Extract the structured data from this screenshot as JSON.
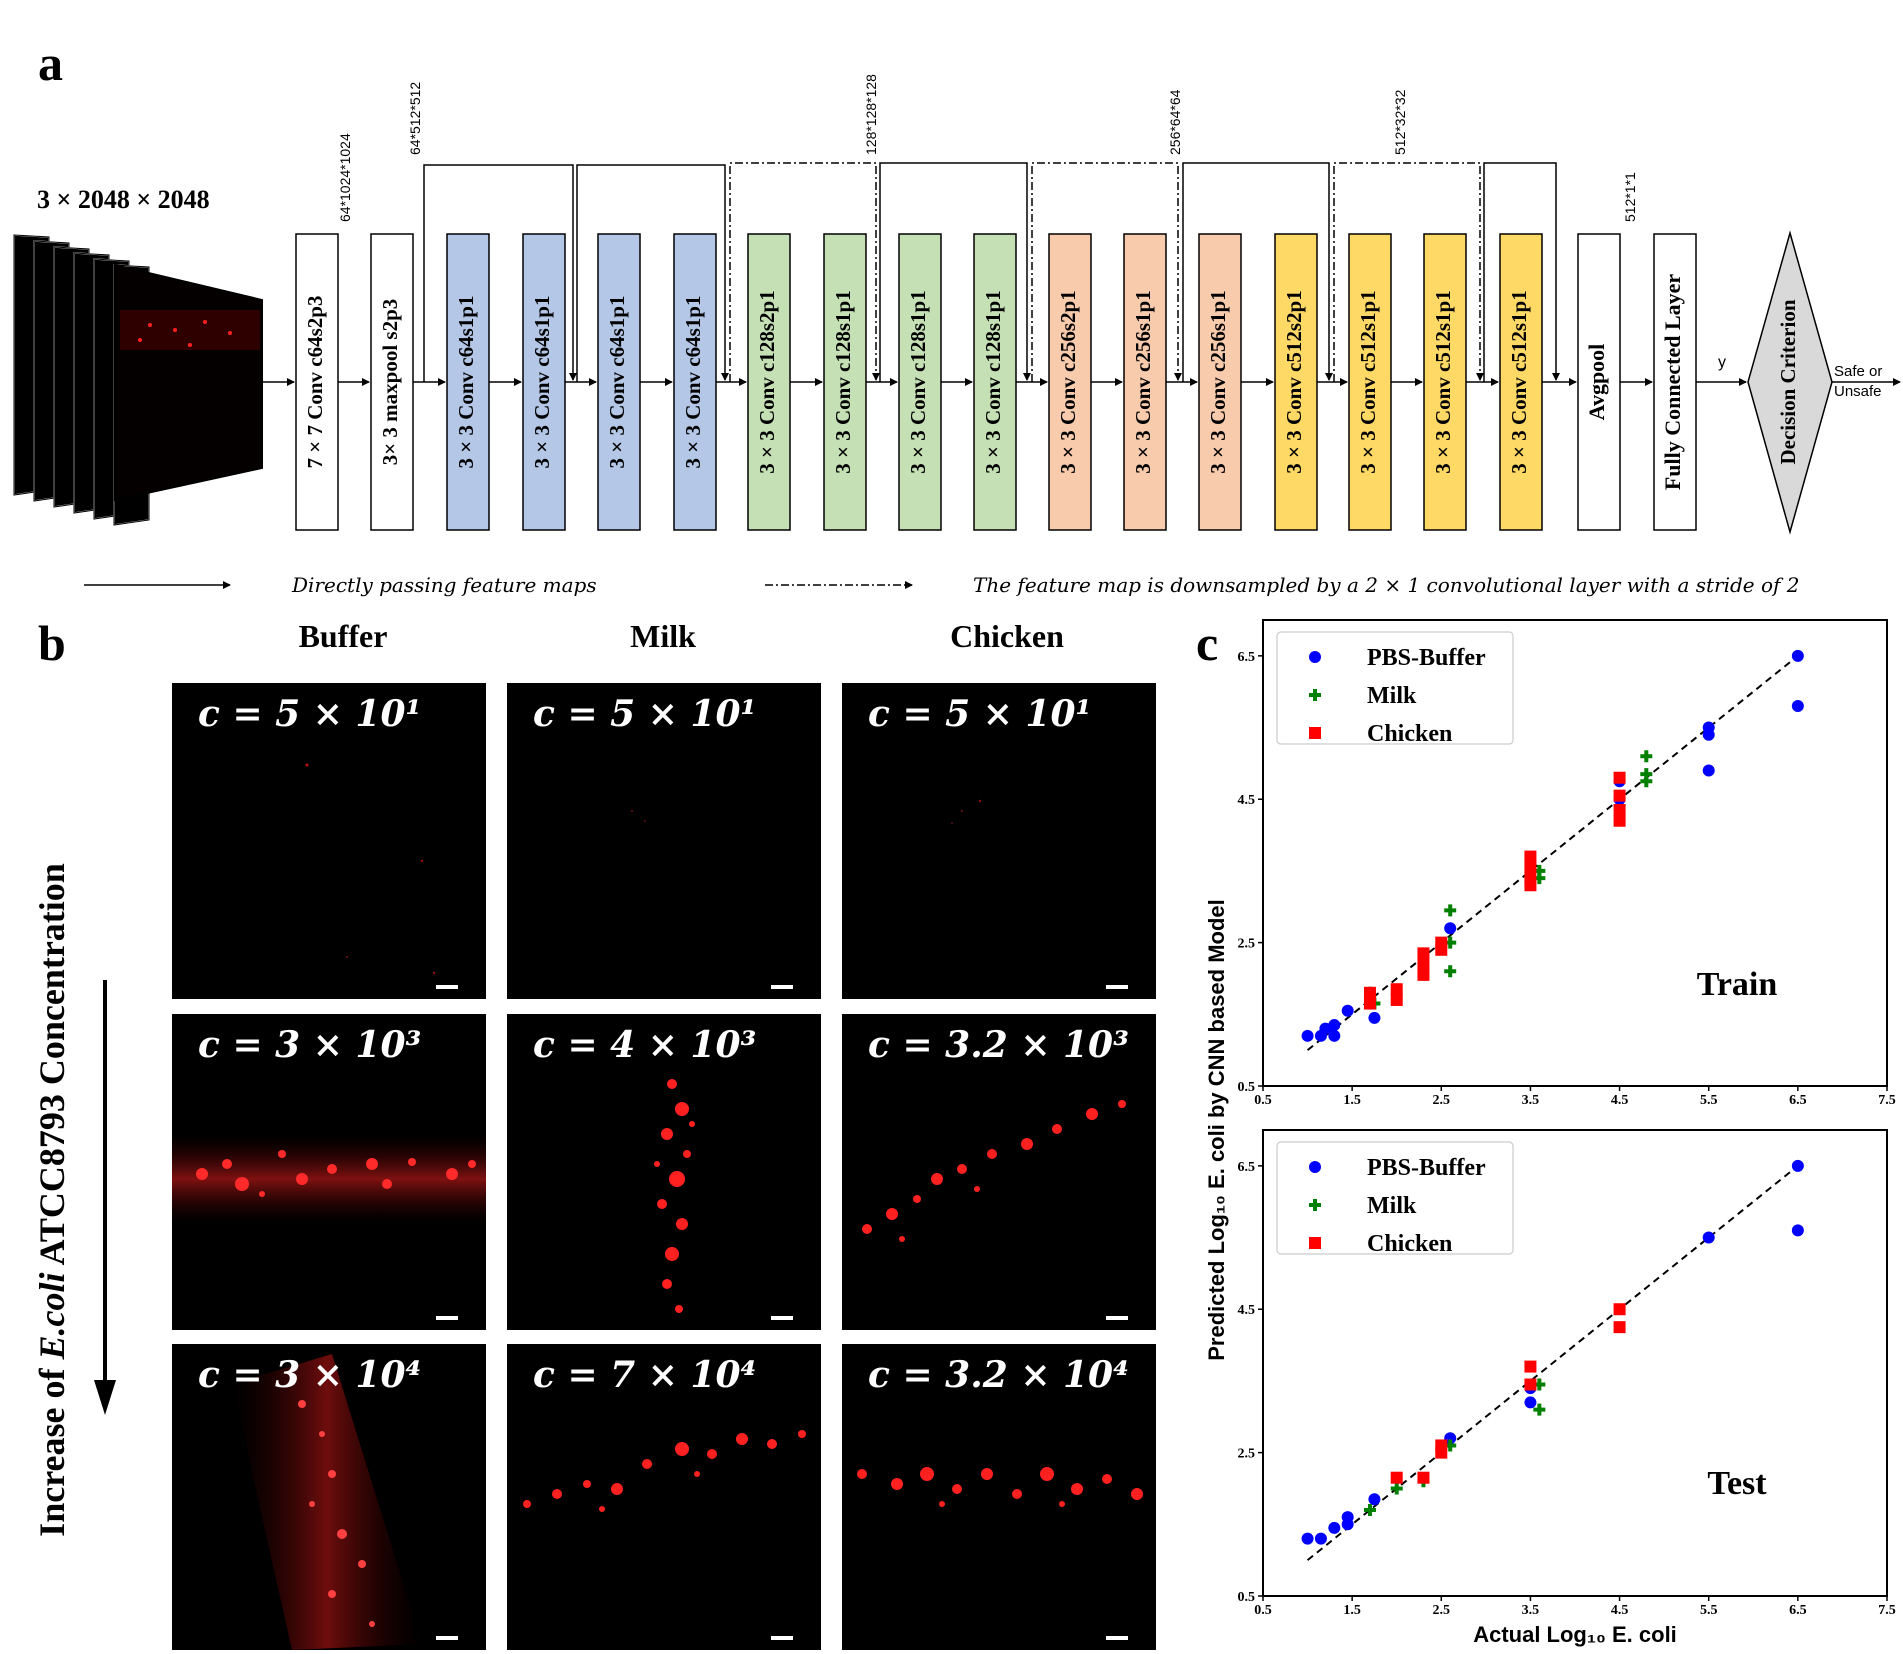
{
  "panels": {
    "a": "a",
    "b": "b",
    "c": "c"
  },
  "network": {
    "input_dims": "3 × 2048 × 2048",
    "blocks": [
      {
        "label": "7 × 7 Conv c64s2p3",
        "color": "#ffffff"
      },
      {
        "label": "3× 3 maxpool s2p3",
        "color": "#ffffff"
      },
      {
        "label": "3 × 3 Conv c64s1p1",
        "color": "#b4c7e7"
      },
      {
        "label": "3 × 3 Conv c64s1p1",
        "color": "#b4c7e7"
      },
      {
        "label": "3 × 3 Conv c64s1p1",
        "color": "#b4c7e7"
      },
      {
        "label": "3 × 3 Conv c64s1p1",
        "color": "#b4c7e7"
      },
      {
        "label": "3 × 3 Conv c128s2p1",
        "color": "#c5e0b4"
      },
      {
        "label": "3 × 3 Conv c128s1p1",
        "color": "#c5e0b4"
      },
      {
        "label": "3 × 3 Conv c128s1p1",
        "color": "#c5e0b4"
      },
      {
        "label": "3 × 3 Conv c128s1p1",
        "color": "#c5e0b4"
      },
      {
        "label": "3 × 3 Conv c256s2p1",
        "color": "#f8cbad"
      },
      {
        "label": "3 × 3 Conv c256s1p1",
        "color": "#f8cbad"
      },
      {
        "label": "3 × 3 Conv c256s1p1",
        "color": "#f8cbad"
      },
      {
        "label": "3 × 3 Conv c512s2p1",
        "color": "#ffd966"
      },
      {
        "label": "3 × 3 Conv c512s1p1",
        "color": "#ffd966"
      },
      {
        "label": "3 × 3 Conv c512s1p1",
        "color": "#ffd966"
      },
      {
        "label": "3 × 3 Conv c512s1p1",
        "color": "#ffd966"
      },
      {
        "label": "Avgpool",
        "color": "#ffffff"
      },
      {
        "label": "Fully Connected Layer",
        "color": "#ffffff"
      }
    ],
    "dims_labels": [
      "64*1024*1024",
      "64*512*512",
      "128*128*128",
      "256*64*64",
      "512*32*32",
      "512*1*1"
    ],
    "y_label": "y",
    "decision_label": "Decision Criterion",
    "decision_color": "#d9d9d9",
    "output_line1": "Safe or",
    "output_line2": "Unsafe",
    "legend_solid": "Directly passing feature maps",
    "legend_dashed": "The feature map is downsampled by a 2 × 1 convolutional layer with a stride of 2"
  },
  "micrographs": {
    "columns": [
      "Buffer",
      "Milk",
      "Chicken"
    ],
    "axis_label_prefix": "Increase of ",
    "axis_label_italic": "E.coli",
    "axis_label_suffix": " ATCC8793 Concentration",
    "rows": [
      [
        "c = 5 × 10¹",
        "c = 5 × 10¹",
        "c = 5 × 10¹"
      ],
      [
        "c = 3 × 10³",
        "c = 4 × 10³",
        "c = 3.2 × 10³"
      ],
      [
        "c = 3 × 10⁴",
        "c = 7 × 10⁴",
        "c = 3.2 × 10⁴"
      ]
    ]
  },
  "chart_data": [
    {
      "type": "scatter",
      "title": "Train",
      "xlabel": "",
      "ylabel": "",
      "xlim": [
        0.5,
        7.5
      ],
      "ylim": [
        0.5,
        7.0
      ],
      "xticks": [
        "0.5",
        "1.5",
        "2.5",
        "3.5",
        "4.5",
        "5.5",
        "6.5",
        "7.5"
      ],
      "yticks": [
        "0.5",
        "2.5",
        "4.5",
        "6.5"
      ],
      "legend_position": "top-left",
      "fit_line": {
        "x": [
          1.0,
          6.5
        ],
        "y": [
          1.0,
          6.5
        ]
      },
      "series": [
        {
          "name": "PBS-Buffer",
          "color": "#0000ff",
          "marker": "circle",
          "x": [
            1.0,
            1.15,
            1.2,
            1.3,
            1.3,
            1.45,
            1.75,
            2.6,
            3.5,
            4.5,
            4.5,
            5.5,
            5.5,
            5.5,
            6.5,
            6.5
          ],
          "y": [
            1.2,
            1.2,
            1.3,
            1.35,
            1.2,
            1.55,
            1.45,
            2.7,
            3.5,
            4.75,
            4.5,
            5.5,
            5.4,
            4.9,
            6.5,
            5.8
          ]
        },
        {
          "name": "Milk",
          "color": "#008000",
          "marker": "plus",
          "x": [
            1.7,
            1.75,
            2.6,
            2.6,
            2.6,
            3.6,
            3.6,
            4.8,
            4.8,
            4.8
          ],
          "y": [
            1.8,
            1.65,
            2.95,
            2.5,
            2.1,
            3.5,
            3.4,
            4.75,
            4.85,
            5.1
          ]
        },
        {
          "name": "Chicken",
          "color": "#ff0000",
          "marker": "square",
          "x": [
            1.7,
            1.7,
            2.0,
            2.0,
            2.3,
            2.3,
            2.3,
            2.5,
            2.5,
            3.5,
            3.5,
            3.5,
            3.5,
            4.5,
            4.5,
            4.5,
            4.5
          ],
          "y": [
            1.8,
            1.65,
            1.85,
            1.7,
            2.35,
            2.2,
            2.05,
            2.5,
            2.4,
            3.7,
            3.55,
            3.4,
            3.3,
            4.8,
            4.55,
            4.35,
            4.2
          ]
        }
      ]
    },
    {
      "type": "scatter",
      "title": "Test",
      "xlabel": "Actual Log₁₀ E. coli",
      "ylabel": "Predicted Log₁₀ E. coli by CNN based Model",
      "xlim": [
        0.5,
        7.5
      ],
      "ylim": [
        0.5,
        7.0
      ],
      "xticks": [
        "0.5",
        "1.5",
        "2.5",
        "3.5",
        "4.5",
        "5.5",
        "6.5",
        "7.5"
      ],
      "yticks": [
        "0.5",
        "2.5",
        "4.5",
        "6.5"
      ],
      "legend_position": "top-left",
      "fit_line": {
        "x": [
          1.0,
          6.5
        ],
        "y": [
          1.0,
          6.5
        ]
      },
      "series": [
        {
          "name": "PBS-Buffer",
          "color": "#0000ff",
          "marker": "circle",
          "x": [
            1.0,
            1.15,
            1.3,
            1.45,
            1.45,
            1.75,
            2.6,
            3.5,
            3.5,
            5.5,
            6.5,
            6.5
          ],
          "y": [
            1.3,
            1.3,
            1.45,
            1.5,
            1.6,
            1.85,
            2.7,
            3.4,
            3.2,
            5.5,
            6.5,
            5.6
          ]
        },
        {
          "name": "Milk",
          "color": "#008000",
          "marker": "plus",
          "x": [
            1.7,
            2.0,
            2.3,
            2.6,
            3.6,
            3.6
          ],
          "y": [
            1.7,
            2.0,
            2.1,
            2.6,
            3.45,
            3.1
          ]
        },
        {
          "name": "Chicken",
          "color": "#ff0000",
          "marker": "square",
          "x": [
            2.0,
            2.3,
            2.5,
            2.5,
            3.5,
            3.5,
            4.5,
            4.5
          ],
          "y": [
            2.15,
            2.15,
            2.6,
            2.5,
            3.7,
            3.45,
            4.5,
            4.25
          ]
        }
      ]
    }
  ]
}
